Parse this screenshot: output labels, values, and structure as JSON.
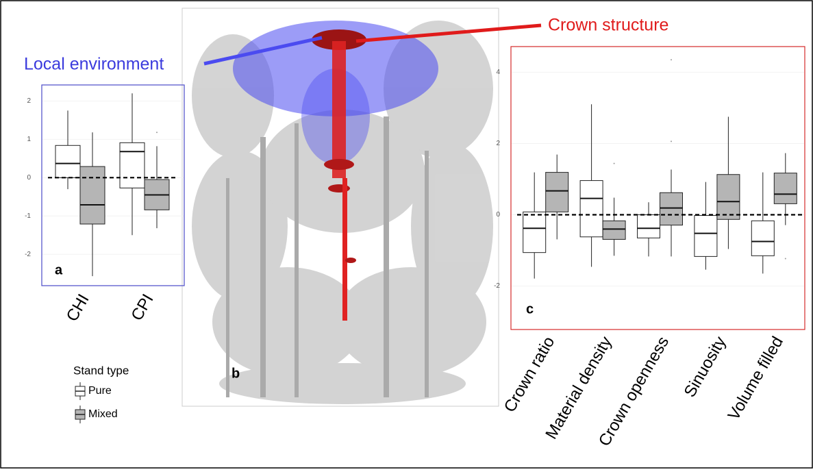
{
  "figure": {
    "annotations": [
      {
        "text": "Local environment",
        "color": "#3b3bdd"
      },
      {
        "text": "Crown structure",
        "color": "#e01b1b"
      }
    ],
    "image_label": "b"
  },
  "chart_data": [
    {
      "type": "box",
      "panel_label": "a",
      "frame_color": "#4a4ac8",
      "categories": [
        "CHI",
        "CPI"
      ],
      "legend_title": "Stand type",
      "series": [
        {
          "name": "Pure",
          "color": "#ffffff",
          "values": [
            {
              "whislo": -0.3,
              "q1": 0,
              "med": 0.37,
              "q3": 0.84,
              "whishi": 1.75
            },
            {
              "whislo": -1.5,
              "q1": -0.27,
              "med": 0.68,
              "q3": 0.91,
              "whishi": 2.2
            }
          ],
          "outliers": [
            [],
            []
          ]
        },
        {
          "name": "Mixed",
          "color": "#b5b5b5",
          "values": [
            {
              "whislo": -2.57,
              "q1": -1.21,
              "med": -0.71,
              "q3": 0.29,
              "whishi": 1.18
            },
            {
              "whislo": -1.32,
              "q1": -0.84,
              "med": -0.45,
              "q3": -0.05,
              "whishi": 0.82
            }
          ],
          "outliers": [
            [],
            [
              1.18
            ]
          ]
        }
      ],
      "hline": 0,
      "ylim": [
        -2.8,
        2.4
      ],
      "yticks": [
        -2,
        -1,
        0,
        1,
        2
      ]
    },
    {
      "type": "box",
      "panel_label": "c",
      "frame_color": "#d42a2a",
      "categories": [
        "Crown ratio",
        "Material density",
        "Crown openness",
        "Sinuosity",
        "Volume filled"
      ],
      "series": [
        {
          "color": "#ffffff",
          "values": [
            {
              "whislo": -1.79,
              "q1": -1.06,
              "med": -0.38,
              "q3": 0.08,
              "whishi": 1.19
            },
            {
              "whislo": -1.46,
              "q1": -0.62,
              "med": 0.46,
              "q3": 0.96,
              "whishi": 3.1
            },
            {
              "whislo": -1.17,
              "q1": -0.65,
              "med": -0.38,
              "q3": 0,
              "whishi": 0.35
            },
            {
              "whislo": -1.54,
              "q1": -1.17,
              "med": -0.52,
              "q3": -0.02,
              "whishi": 0.92
            },
            {
              "whislo": -1.65,
              "q1": -1.15,
              "med": -0.75,
              "q3": -0.17,
              "whishi": 1.19
            }
          ],
          "outliers": [
            [],
            [],
            [],
            [],
            []
          ]
        },
        {
          "color": "#b5b5b5",
          "values": [
            {
              "whislo": -0.69,
              "q1": 0.08,
              "med": 0.67,
              "q3": 1.19,
              "whishi": 1.69
            },
            {
              "whislo": -1.15,
              "q1": -0.69,
              "med": -0.4,
              "q3": -0.17,
              "whishi": 0.48
            },
            {
              "whislo": -1.17,
              "q1": -0.29,
              "med": 0.19,
              "q3": 0.62,
              "whishi": 1.27
            },
            {
              "whislo": -0.96,
              "q1": -0.13,
              "med": 0.37,
              "q3": 1.13,
              "whishi": 2.75
            },
            {
              "whislo": -0.29,
              "q1": 0.31,
              "med": 0.58,
              "q3": 1.17,
              "whishi": 1.73
            }
          ],
          "outliers": [
            [],
            [
              1.44
            ],
            [
              4.35,
              2.06
            ],
            [],
            [
              -1.23
            ]
          ]
        }
      ],
      "hline": 0,
      "ylim": [
        -3.2,
        4.7
      ],
      "yticks": [
        -2,
        0,
        2,
        4
      ]
    }
  ]
}
